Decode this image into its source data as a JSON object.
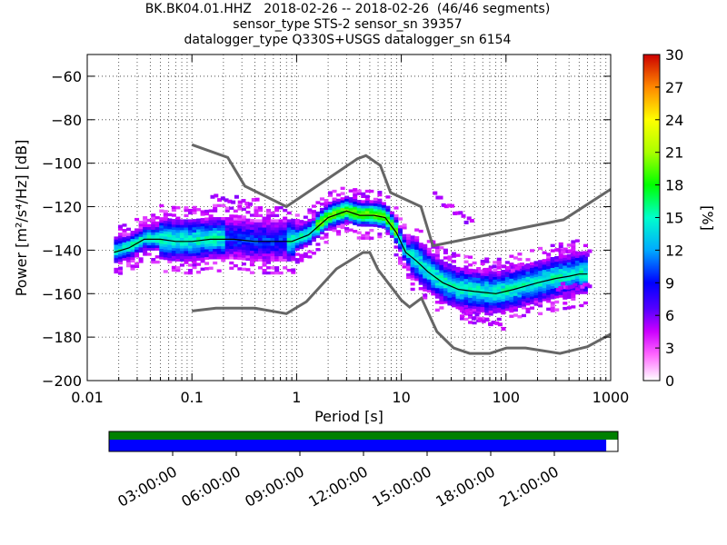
{
  "title": {
    "line1": "BK.BK04.01.HHZ   2018-02-26 -- 2018-02-26  (46/46 segments)",
    "line2": "sensor_type STS-2 sensor_sn 39357",
    "line3": "datalogger_type Q330S+USGS datalogger_sn 6154"
  },
  "colors": {
    "data_line": "#000000",
    "noise_model": "#666666",
    "coverage_green": "#008000",
    "coverage_blue": "#0000ff"
  },
  "chart_data": {
    "type": "heatmap",
    "title": "BK.BK04.01.HHZ   2018-02-26 -- 2018-02-26  (46/46 segments)",
    "xlabel": "Period [s]",
    "ylabel": "Power [m²/s⁴/Hz] [dB]",
    "x_scale": "log",
    "xlim": [
      0.01,
      1000
    ],
    "ylim": [
      -200,
      -50
    ],
    "x_ticks": [
      0.01,
      0.1,
      1,
      10,
      100,
      1000
    ],
    "x_tick_labels": [
      "0.01",
      "0.1",
      "1",
      "10",
      "100",
      "1000"
    ],
    "y_ticks": [
      -200,
      -180,
      -160,
      -140,
      -120,
      -100,
      -80,
      -60
    ],
    "y_tick_labels": [
      "−200",
      "−180",
      "−160",
      "−140",
      "−120",
      "−100",
      "−80",
      "−60"
    ],
    "grid": true,
    "colorbar": {
      "label": "[%]",
      "range": [
        0,
        30
      ],
      "ticks": [
        0,
        3,
        6,
        9,
        12,
        15,
        18,
        21,
        24,
        27,
        30
      ],
      "tick_labels": [
        "0",
        "3",
        "6",
        "9",
        "12",
        "15",
        "18",
        "21",
        "24",
        "27",
        "30"
      ]
    },
    "series": [
      {
        "label": "mode",
        "x": [
          0.018,
          0.025,
          0.035,
          0.05,
          0.07,
          0.1,
          0.15,
          0.25,
          0.4,
          0.6,
          0.9,
          1.3,
          2.0,
          3.0,
          4.0,
          5.5,
          7.0,
          9.0,
          11,
          14,
          18,
          25,
          35,
          50,
          80,
          120,
          200,
          300,
          400,
          500,
          600
        ],
        "y": [
          -141,
          -139,
          -135,
          -135,
          -136,
          -136,
          -135,
          -135,
          -136,
          -136,
          -136,
          -133,
          -125,
          -122,
          -124,
          -124,
          -125,
          -132,
          -141,
          -145,
          -150,
          -155,
          -158,
          -159,
          -160,
          -158,
          -155,
          -153,
          -152,
          -151,
          -151
        ]
      },
      {
        "label": "noise model high",
        "x": [
          0.1,
          0.22,
          0.32,
          0.8,
          3.8,
          4.6,
          6.3,
          7.9,
          15.4,
          20,
          354.8,
          1000
        ],
        "y": [
          -91.5,
          -97.4,
          -110.5,
          -120,
          -98,
          -96.5,
          -101,
          -113.5,
          -120,
          -138,
          -126,
          -112
        ]
      },
      {
        "label": "noise model low",
        "x": [
          0.1,
          0.17,
          0.4,
          0.8,
          1.24,
          2.4,
          4.3,
          5.0,
          6.0,
          10.0,
          12.0,
          15.6,
          21.9,
          31.6,
          45.0,
          70.0,
          101.0,
          154.0,
          328.0,
          600.0,
          1000
        ],
        "y": [
          -168,
          -166.7,
          -166.7,
          -169.2,
          -163.7,
          -148.6,
          -141.1,
          -141.1,
          -149,
          -163,
          -166.2,
          -162.1,
          -177.5,
          -185,
          -187.5,
          -187.5,
          -185,
          -185,
          -187.5,
          -184.4,
          -178.6
        ]
      }
    ]
  },
  "coverage": {
    "time_labels": [
      "03:00:00",
      "06:00:00",
      "09:00:00",
      "12:00:00",
      "15:00:00",
      "18:00:00",
      "21:00:00"
    ],
    "blue_fraction": 0.977
  }
}
